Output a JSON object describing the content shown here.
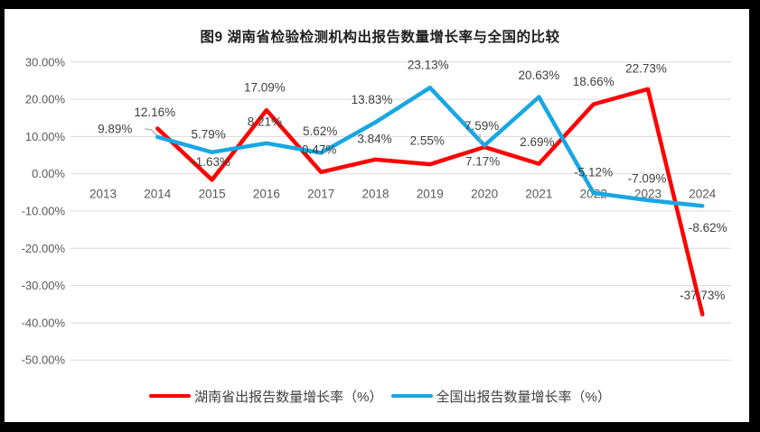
{
  "frame": {
    "border_color": "#000000",
    "canvas_background": "#FFFFFF"
  },
  "chart_data": {
    "type": "line",
    "title": "图9 湖南省检验检测机构出报告数量增长率与全国的比较",
    "categories": [
      "2013",
      "2014",
      "2015",
      "2016",
      "2017",
      "2018",
      "2019",
      "2020",
      "2021",
      "2022",
      "2023",
      "2024"
    ],
    "y_ticks": [
      "30.00%",
      "20.00%",
      "10.00%",
      "0.00%",
      "-10.00%",
      "-20.00%",
      "-30.00%",
      "-40.00%",
      "-50.00%"
    ],
    "ylim": [
      -50,
      30
    ],
    "grid": true,
    "gridline_color": "#D9D9D9",
    "axis_text_color": "#595959",
    "label_text_color": "#404040",
    "leader_line_color": "#A6A6A6",
    "legend_position": "bottom",
    "series": [
      {
        "name": "湖南省出报告数量增长率（%）",
        "color": "#FF0000",
        "start_category": "2014",
        "values": [
          12.16,
          -1.63,
          17.09,
          0.47,
          3.84,
          2.55,
          7.17,
          2.69,
          18.66,
          22.73,
          -37.73
        ],
        "labels": [
          "12.16%",
          "-1.63%",
          "17.09%",
          "0.47%",
          "3.84%",
          "2.55%",
          "7.17%",
          "2.69%",
          "18.66%",
          "22.73%",
          "-37.73%"
        ],
        "label_offsets": [
          [
            -3,
            -18
          ],
          [
            -1,
            -20
          ],
          [
            -2,
            -25
          ],
          [
            -2,
            -25
          ],
          [
            -1,
            -23
          ],
          [
            -3,
            -26
          ],
          [
            -2,
            16
          ],
          [
            -2,
            -24
          ],
          [
            0,
            -25
          ],
          [
            -2,
            -23
          ],
          [
            0,
            -21
          ]
        ],
        "label_leaders": [
          null,
          null,
          null,
          null,
          null,
          null,
          null,
          null,
          null,
          null,
          null
        ]
      },
      {
        "name": "全国出报告数量增长率（%）",
        "color": "#18A7E3",
        "start_category": "2014",
        "values": [
          9.89,
          5.79,
          8.21,
          5.62,
          13.83,
          23.13,
          7.59,
          20.63,
          -5.12,
          -7.09,
          -8.62
        ],
        "labels": [
          "9.89%",
          "5.79%",
          "8.21%",
          "5.62%",
          "13.83%",
          "23.13%",
          "7.59%",
          "20.63%",
          "-5.12%",
          "-7.09%",
          "-8.62%"
        ],
        "label_offsets": [
          [
            -47,
            -9
          ],
          [
            -4,
            -20
          ],
          [
            -2,
            -24
          ],
          [
            -1,
            -24
          ],
          [
            -4,
            -25
          ],
          [
            -2,
            -25
          ],
          [
            -3,
            -22
          ],
          [
            0,
            -24
          ],
          [
            0,
            -23
          ],
          [
            -1,
            -24
          ],
          [
            6,
            24
          ]
        ],
        "label_leaders": [
          "angled",
          null,
          null,
          null,
          null,
          null,
          "vertical",
          null,
          null,
          null,
          null
        ]
      }
    ]
  }
}
